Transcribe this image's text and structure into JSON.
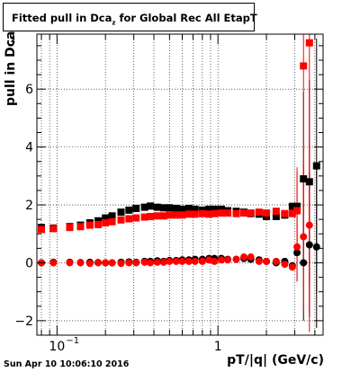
{
  "title": {
    "prefix": "Fitted pull in Dca",
    "subscript": "z",
    "suffix": " for Global Rec All EtapT"
  },
  "y_label": "pull in Dca",
  "y_label_sub": "z",
  "x_label": "pT/|q| (GeV/c)",
  "datestamp": "Sun Apr 10 10:06:10 2016",
  "chart_data": {
    "type": "scatter",
    "title": "Fitted pull in Dca_z for Global Rec All EtapT",
    "xlabel": "pT/|q| (GeV/c)",
    "ylabel": "pull in Dca_z",
    "xscale": "log",
    "xlim": [
      0.075,
      4.5
    ],
    "ylim": [
      -2.5,
      7.9
    ],
    "x_tick_labels": [
      {
        "value": 0.1,
        "label": "10",
        "sup": "-1"
      },
      {
        "value": 1,
        "label": "1",
        "sup": ""
      }
    ],
    "y_ticks": [
      -2,
      0,
      2,
      4,
      6
    ],
    "grid": true,
    "series": [
      {
        "color": "#000000",
        "marker": "square",
        "points": [
          [
            0.08,
            1.22
          ],
          [
            0.095,
            1.2
          ],
          [
            0.12,
            1.25
          ],
          [
            0.14,
            1.3
          ],
          [
            0.16,
            1.38
          ],
          [
            0.18,
            1.45
          ],
          [
            0.2,
            1.55
          ],
          [
            0.22,
            1.62
          ],
          [
            0.25,
            1.75
          ],
          [
            0.28,
            1.82
          ],
          [
            0.31,
            1.88
          ],
          [
            0.35,
            1.92
          ],
          [
            0.38,
            1.96
          ],
          [
            0.42,
            1.92
          ],
          [
            0.46,
            1.9
          ],
          [
            0.5,
            1.9
          ],
          [
            0.55,
            1.88
          ],
          [
            0.6,
            1.85
          ],
          [
            0.66,
            1.88
          ],
          [
            0.72,
            1.85
          ],
          [
            0.8,
            1.82
          ],
          [
            0.88,
            1.85
          ],
          [
            0.95,
            1.85
          ],
          [
            1.05,
            1.85
          ],
          [
            1.15,
            1.8
          ],
          [
            1.3,
            1.78
          ],
          [
            1.45,
            1.75
          ],
          [
            1.6,
            1.7
          ],
          [
            1.8,
            1.68
          ],
          [
            2.0,
            1.6
          ],
          [
            2.3,
            1.6
          ],
          [
            2.6,
            1.65
          ],
          [
            2.9,
            1.95
          ],
          [
            3.1,
            1.95
          ],
          [
            3.4,
            2.9
          ],
          [
            3.7,
            2.8
          ],
          [
            4.1,
            3.35
          ]
        ],
        "errors": [
          [
            3.1,
            1.2
          ],
          [
            3.4,
            3.0
          ],
          [
            3.7,
            3.5
          ],
          [
            4.1,
            4.4
          ]
        ]
      },
      {
        "color": "#000000",
        "marker": "circle",
        "points": [
          [
            0.08,
            0.0
          ],
          [
            0.095,
            0.02
          ],
          [
            0.12,
            0.02
          ],
          [
            0.14,
            0.01
          ],
          [
            0.16,
            0.02
          ],
          [
            0.18,
            0.01
          ],
          [
            0.2,
            0.0
          ],
          [
            0.22,
            0.0
          ],
          [
            0.25,
            0.02
          ],
          [
            0.28,
            0.03
          ],
          [
            0.31,
            0.02
          ],
          [
            0.35,
            0.05
          ],
          [
            0.38,
            0.05
          ],
          [
            0.42,
            0.07
          ],
          [
            0.46,
            0.05
          ],
          [
            0.5,
            0.08
          ],
          [
            0.55,
            0.08
          ],
          [
            0.6,
            0.1
          ],
          [
            0.66,
            0.1
          ],
          [
            0.72,
            0.12
          ],
          [
            0.8,
            0.12
          ],
          [
            0.88,
            0.15
          ],
          [
            0.95,
            0.15
          ],
          [
            1.05,
            0.15
          ],
          [
            1.15,
            0.12
          ],
          [
            1.3,
            0.12
          ],
          [
            1.45,
            0.15
          ],
          [
            1.6,
            0.12
          ],
          [
            1.8,
            0.1
          ],
          [
            2.0,
            0.05
          ],
          [
            2.3,
            0.0
          ],
          [
            2.6,
            0.05
          ],
          [
            2.9,
            -0.1
          ],
          [
            3.1,
            0.35
          ],
          [
            3.4,
            0.0
          ],
          [
            3.7,
            0.62
          ],
          [
            4.1,
            0.55
          ]
        ],
        "errors": [
          [
            3.1,
            1.0
          ],
          [
            3.4,
            2.0
          ],
          [
            3.7,
            2.5
          ],
          [
            4.1,
            2.8
          ]
        ]
      },
      {
        "color": "#ff0000",
        "marker": "square",
        "points": [
          [
            0.08,
            1.15
          ],
          [
            0.095,
            1.18
          ],
          [
            0.12,
            1.22
          ],
          [
            0.14,
            1.25
          ],
          [
            0.16,
            1.3
          ],
          [
            0.18,
            1.32
          ],
          [
            0.2,
            1.38
          ],
          [
            0.22,
            1.42
          ],
          [
            0.25,
            1.48
          ],
          [
            0.28,
            1.52
          ],
          [
            0.31,
            1.55
          ],
          [
            0.35,
            1.58
          ],
          [
            0.38,
            1.6
          ],
          [
            0.42,
            1.62
          ],
          [
            0.46,
            1.62
          ],
          [
            0.5,
            1.65
          ],
          [
            0.55,
            1.65
          ],
          [
            0.6,
            1.65
          ],
          [
            0.66,
            1.68
          ],
          [
            0.72,
            1.68
          ],
          [
            0.8,
            1.7
          ],
          [
            0.88,
            1.68
          ],
          [
            0.95,
            1.7
          ],
          [
            1.05,
            1.72
          ],
          [
            1.15,
            1.72
          ],
          [
            1.3,
            1.7
          ],
          [
            1.45,
            1.72
          ],
          [
            1.6,
            1.72
          ],
          [
            1.8,
            1.75
          ],
          [
            2.0,
            1.72
          ],
          [
            2.3,
            1.78
          ],
          [
            2.6,
            1.7
          ],
          [
            2.9,
            1.7
          ],
          [
            3.1,
            1.8
          ],
          [
            3.4,
            6.8
          ],
          [
            3.7,
            7.6
          ]
        ],
        "errors": [
          [
            3.1,
            1.5
          ],
          [
            3.4,
            5.0
          ],
          [
            3.7,
            10
          ]
        ]
      },
      {
        "color": "#ff0000",
        "marker": "circle",
        "points": [
          [
            0.08,
            0.0
          ],
          [
            0.095,
            0.0
          ],
          [
            0.12,
            0.0
          ],
          [
            0.14,
            0.0
          ],
          [
            0.16,
            -0.02
          ],
          [
            0.18,
            0.0
          ],
          [
            0.2,
            0.0
          ],
          [
            0.22,
            0.0
          ],
          [
            0.25,
            -0.02
          ],
          [
            0.28,
            0.0
          ],
          [
            0.31,
            0.0
          ],
          [
            0.35,
            0.02
          ],
          [
            0.38,
            0.0
          ],
          [
            0.42,
            0.02
          ],
          [
            0.46,
            0.02
          ],
          [
            0.5,
            0.05
          ],
          [
            0.55,
            0.05
          ],
          [
            0.6,
            0.05
          ],
          [
            0.66,
            0.05
          ],
          [
            0.72,
            0.05
          ],
          [
            0.8,
            0.05
          ],
          [
            0.88,
            0.1
          ],
          [
            0.95,
            0.05
          ],
          [
            1.05,
            0.1
          ],
          [
            1.15,
            0.1
          ],
          [
            1.3,
            0.12
          ],
          [
            1.45,
            0.2
          ],
          [
            1.6,
            0.2
          ],
          [
            1.8,
            0.05
          ],
          [
            2.0,
            0.05
          ],
          [
            2.3,
            0.05
          ],
          [
            2.6,
            -0.05
          ],
          [
            2.9,
            -0.15
          ],
          [
            3.1,
            0.55
          ],
          [
            3.4,
            0.9
          ],
          [
            3.7,
            1.3
          ]
        ],
        "errors": [
          [
            3.1,
            1.2
          ],
          [
            3.4,
            2.5
          ],
          [
            3.7,
            3.0
          ]
        ]
      }
    ]
  }
}
